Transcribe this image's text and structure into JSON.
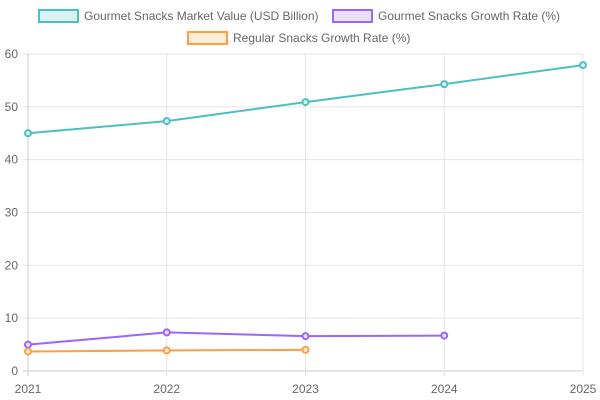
{
  "chart_data": {
    "type": "line",
    "x": [
      "2021",
      "2022",
      "2023",
      "2024",
      "2025"
    ],
    "ylim": [
      0,
      60
    ],
    "yticks": [
      0,
      10,
      20,
      30,
      40,
      50,
      60
    ],
    "grid": true,
    "legend_position": "top",
    "series": [
      {
        "name": "Gourmet Snacks Market Value (USD Billion)",
        "color": "#4bc0c0",
        "fill": "#dbf2f2",
        "values": [
          45.0,
          47.3,
          50.9,
          54.3,
          57.9
        ]
      },
      {
        "name": "Gourmet Snacks Growth Rate (%)",
        "color": "#9966ff",
        "fill": "#ebe0ff",
        "values": [
          5.0,
          7.3,
          6.6,
          6.7,
          null
        ]
      },
      {
        "name": "Regular Snacks Growth Rate (%)",
        "color": "#ff9f40",
        "fill": "#ffecd9",
        "values": [
          3.7,
          3.9,
          4.0,
          null,
          null
        ]
      }
    ]
  }
}
